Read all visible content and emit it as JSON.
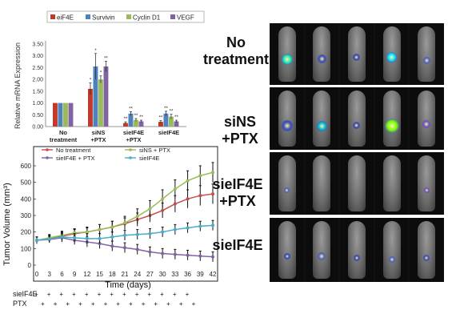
{
  "mrna_chart": {
    "ylabel": "Relative mRNA Expression",
    "legend": [
      "eiF4E",
      "Survivin",
      "Cyclin D1",
      "VEGF"
    ],
    "colors": [
      "#c0392b",
      "#4f81bd",
      "#9bbb59",
      "#8064a2"
    ],
    "yticks": [
      "0.00",
      "0.50",
      "1.00",
      "1.50",
      "2.00",
      "2.50",
      "3.00",
      "3.50"
    ],
    "groups": [
      {
        "lines": [
          "No",
          "treatment"
        ]
      },
      {
        "lines": [
          "siNS",
          "+PTX"
        ]
      },
      {
        "lines": [
          "sieIF4E",
          "+PTX"
        ]
      },
      {
        "lines": [
          "sieIF4E"
        ]
      }
    ]
  },
  "tumor_chart": {
    "ylabel": "Tumor Volume (mm³)",
    "xlabel": "Time (days)",
    "yticks": [
      "0",
      "100",
      "200",
      "300",
      "400",
      "500",
      "600"
    ],
    "xticks": [
      "0",
      "3",
      "6",
      "9",
      "12",
      "15",
      "18",
      "21",
      "24",
      "27",
      "30",
      "33",
      "36",
      "39",
      "42"
    ],
    "legend": [
      "No treatment",
      "siNS + PTX",
      "sieIF4E + PTX",
      "sieIF4E"
    ],
    "colors": [
      "#c0504d",
      "#9bbb59",
      "#8064a2",
      "#4bacc6"
    ]
  },
  "dosing": {
    "rows": [
      {
        "label": "sieIF4E",
        "mark": "+"
      },
      {
        "label": "PTX",
        "mark": "+"
      }
    ]
  },
  "image_labels": [
    {
      "lines": [
        "No",
        "treatment"
      ]
    },
    {
      "lines": [
        "siNS",
        "+PTX"
      ]
    },
    {
      "lines": [
        "sieIF4E",
        "+PTX"
      ]
    },
    {
      "lines": [
        "sieIF4E"
      ]
    }
  ],
  "chart_data": [
    {
      "type": "bar",
      "categories": [
        "No treatment",
        "siNS +PTX",
        "sieIF4E +PTX",
        "sieIF4E"
      ],
      "series": [
        {
          "name": "eiF4E",
          "values": [
            1.0,
            1.6,
            0.15,
            0.2
          ],
          "errors": [
            0.0,
            0.25,
            0.05,
            0.05
          ],
          "sig": [
            "",
            "*",
            "**",
            "**"
          ]
        },
        {
          "name": "Survivin",
          "values": [
            1.0,
            2.55,
            0.55,
            0.55
          ],
          "errors": [
            0.0,
            0.55,
            0.08,
            0.1
          ],
          "sig": [
            "",
            "*",
            "**",
            "**"
          ]
        },
        {
          "name": "Cyclin D1",
          "values": [
            1.0,
            2.0,
            0.28,
            0.42
          ],
          "errors": [
            0.0,
            0.15,
            0.06,
            0.1
          ],
          "sig": [
            "",
            "*",
            "**",
            "**"
          ]
        },
        {
          "name": "VEGF",
          "values": [
            1.0,
            2.55,
            0.22,
            0.22
          ],
          "errors": [
            0.0,
            0.22,
            0.05,
            0.05
          ],
          "sig": [
            "",
            "**",
            "**",
            "**"
          ]
        }
      ],
      "ylabel": "Relative mRNA Expression",
      "ylim": [
        0,
        3.5
      ],
      "legend_position": "top"
    },
    {
      "type": "line",
      "x": [
        0,
        3,
        6,
        9,
        12,
        15,
        18,
        21,
        24,
        27,
        30,
        33,
        36,
        39,
        42
      ],
      "series": [
        {
          "name": "No treatment",
          "values": [
            150,
            160,
            175,
            190,
            200,
            215,
            230,
            250,
            275,
            300,
            330,
            370,
            400,
            420,
            430
          ],
          "errors": [
            20,
            20,
            25,
            25,
            25,
            30,
            35,
            35,
            40,
            40,
            45,
            50,
            55,
            60,
            60
          ]
        },
        {
          "name": "siNS + PTX",
          "values": [
            150,
            165,
            180,
            195,
            200,
            215,
            230,
            255,
            295,
            340,
            400,
            460,
            510,
            540,
            560
          ],
          "errors": [
            20,
            20,
            25,
            25,
            30,
            30,
            35,
            40,
            45,
            50,
            55,
            55,
            60,
            60,
            60
          ]
        },
        {
          "name": "sieIF4E + PTX",
          "values": [
            150,
            155,
            165,
            150,
            140,
            130,
            115,
            105,
            95,
            80,
            70,
            65,
            60,
            55,
            50
          ],
          "errors": [
            20,
            20,
            25,
            25,
            30,
            30,
            30,
            30,
            30,
            30,
            30,
            30,
            30,
            30,
            30
          ]
        },
        {
          "name": "sieIF4E",
          "values": [
            150,
            158,
            170,
            165,
            160,
            160,
            170,
            180,
            185,
            190,
            200,
            215,
            225,
            235,
            240
          ],
          "errors": [
            20,
            20,
            25,
            25,
            30,
            30,
            30,
            30,
            30,
            30,
            30,
            30,
            30,
            30,
            30
          ]
        }
      ],
      "xlabel": "Time (days)",
      "ylabel": "Tumor Volume (mm³)",
      "xlim": [
        0,
        42
      ],
      "ylim": [
        0,
        650
      ],
      "legend_position": "top"
    }
  ]
}
